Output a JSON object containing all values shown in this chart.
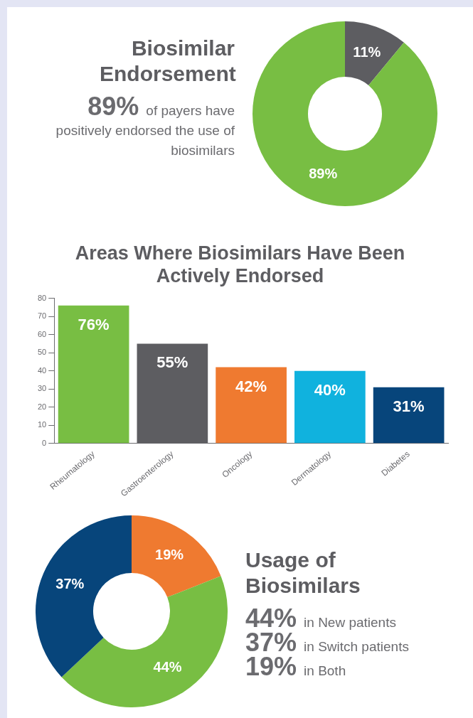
{
  "chart_data": [
    {
      "type": "donut",
      "title": "Biosimilar Endorsement",
      "categories": [
        null,
        null
      ],
      "values": [
        11,
        89
      ],
      "colors": [
        "#5d5d61",
        "#78be43"
      ],
      "value_labels": [
        "11%",
        "89%"
      ],
      "annotations": [
        "89% of payers have positively endorsed the use of biosimilars"
      ],
      "legend": false
    },
    {
      "type": "bar",
      "title": "Areas Where Biosimilars Have Been Actively Endorsed",
      "categories": [
        "Rheumatology",
        "Gastroenterology",
        "Oncology",
        "Dermatology",
        "Diabetes"
      ],
      "values": [
        76,
        55,
        42,
        40,
        31
      ],
      "colors": [
        "#78be43",
        "#5d5d61",
        "#ef7a30",
        "#10b2de",
        "#07457b"
      ],
      "value_labels": [
        "76%",
        "55%",
        "42%",
        "40%",
        "31%"
      ],
      "ylim": [
        0,
        80
      ],
      "yticks": [
        0,
        10,
        20,
        30,
        40,
        50,
        60,
        70,
        80
      ],
      "grid": false,
      "legend": false
    },
    {
      "type": "donut",
      "title": "Usage of Biosimilars",
      "categories": [
        null,
        null,
        null
      ],
      "values": [
        19,
        44,
        37
      ],
      "colors": [
        "#ef7a30",
        "#78be43",
        "#07457b"
      ],
      "value_labels": [
        "19%",
        "44%",
        "37%"
      ],
      "annotations": [
        "44% in New patients",
        "37% in Switch patients",
        "19% in Both"
      ],
      "legend": false
    }
  ]
}
